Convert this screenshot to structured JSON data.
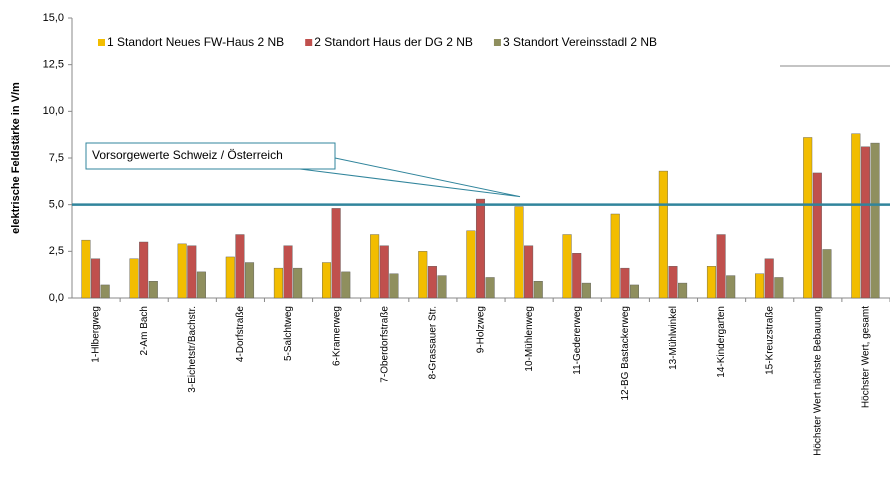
{
  "chart_data": {
    "type": "bar",
    "y_label": "elektrische  Feldstärke in V/m",
    "categories": [
      "1-Hlbergweg",
      "2-Am Bach",
      "3-Eichetstr/Bachstr.",
      "4-Dorfstraße",
      "5-Salchtweg",
      "6-Kramerweg",
      "7-Oberdorfstraße",
      "8-Grassauer Str.",
      "9-Holzweg",
      "10-Mühlenweg",
      "11-Gedererweg",
      "12-BG Bastackerweg",
      "13-Mühlwinkel",
      "14-Kindergarten",
      "15-Kreuzstraße",
      "Höchster Wert nächste Bebauung",
      "Höchster Wert, gesamt"
    ],
    "series": [
      {
        "name": "1 Standort Neues FW-Haus 2 NB",
        "color": "#f2bd00",
        "values": [
          3.1,
          2.1,
          2.9,
          2.2,
          1.6,
          1.9,
          3.4,
          2.5,
          3.6,
          4.9,
          3.4,
          4.5,
          6.8,
          1.7,
          1.3,
          8.6,
          8.8
        ]
      },
      {
        "name": "2 Standort Haus der DG 2 NB",
        "color": "#c0504d",
        "values": [
          2.1,
          3.0,
          2.8,
          3.4,
          2.8,
          4.8,
          2.8,
          1.7,
          5.3,
          2.8,
          2.4,
          1.6,
          1.7,
          3.4,
          2.1,
          6.7,
          8.1
        ]
      },
      {
        "name": "3 Standort Vereinsstadl 2 NB",
        "color": "#8f8f5e",
        "values": [
          0.7,
          0.9,
          1.4,
          1.9,
          1.6,
          1.4,
          1.3,
          1.2,
          1.1,
          0.9,
          0.8,
          0.7,
          0.8,
          1.2,
          1.1,
          2.6,
          8.3
        ]
      }
    ],
    "ylim": [
      0,
      15
    ],
    "yticks": [
      {
        "value": 0,
        "label": "0,0"
      },
      {
        "value": 2.5,
        "label": "2,5"
      },
      {
        "value": 5,
        "label": "5,0"
      },
      {
        "value": 7.5,
        "label": "7,5"
      },
      {
        "value": 10,
        "label": "10,0"
      },
      {
        "value": 12.5,
        "label": "12,5"
      },
      {
        "value": 15,
        "label": "15,0"
      }
    ],
    "reference_line": {
      "value": 5,
      "label": "Vorsorgewerte Schweiz / Österreich",
      "color": "#31859c"
    }
  }
}
